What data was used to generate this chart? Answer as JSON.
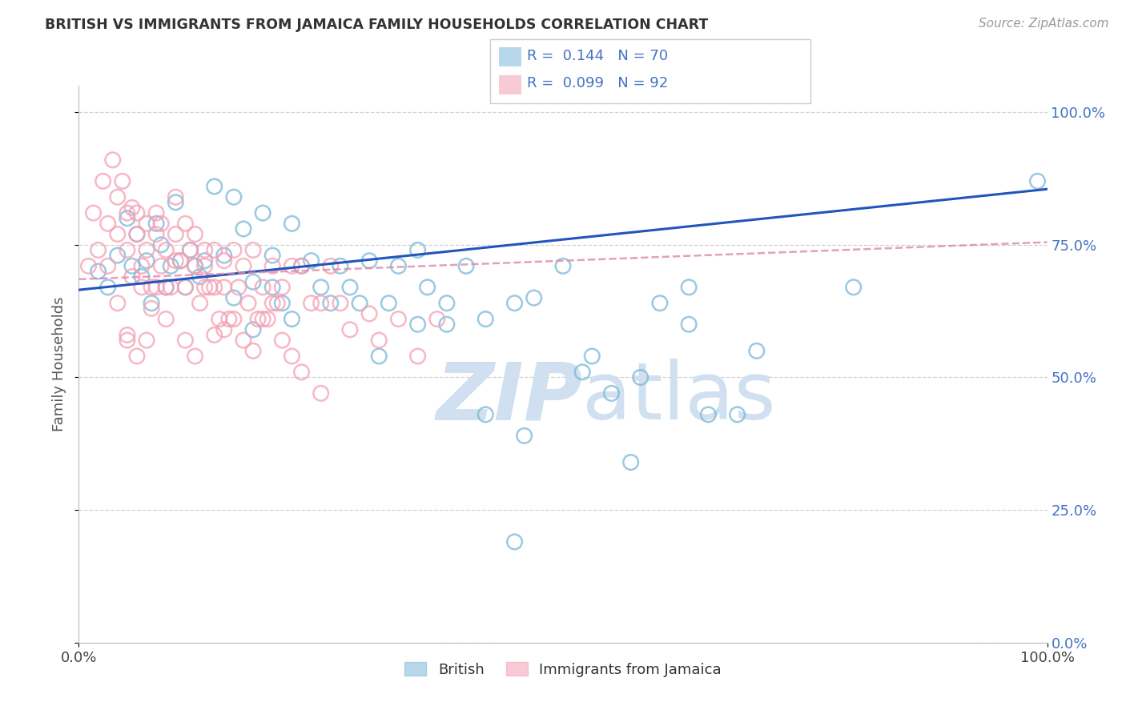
{
  "title": "BRITISH VS IMMIGRANTS FROM JAMAICA FAMILY HOUSEHOLDS CORRELATION CHART",
  "source_text": "Source: ZipAtlas.com",
  "ylabel": "Family Households",
  "series1_name": "British",
  "series2_name": "Immigrants from Jamaica",
  "series1_color": "#7ab8d9",
  "series2_color": "#f4a0b5",
  "series1_R": 0.144,
  "series1_N": 70,
  "series2_R": 0.099,
  "series2_N": 92,
  "xmin": 0.0,
  "xmax": 1.0,
  "ymin": 0.0,
  "ymax": 1.05,
  "ytick_positions": [
    0.0,
    0.25,
    0.5,
    0.75,
    1.0
  ],
  "ytick_labels": [
    "0.0%",
    "25.0%",
    "50.0%",
    "75.0%",
    "100.0%"
  ],
  "xtick_positions": [
    0.0,
    1.0
  ],
  "xtick_labels": [
    "0.0%",
    "100.0%"
  ],
  "background_color": "#ffffff",
  "grid_color": "#cccccc",
  "title_color": "#333333",
  "axis_label_color": "#555555",
  "right_axis_tick_color": "#4472c4",
  "watermark_color": "#d0e0f0",
  "trend1_color": "#2255bb",
  "trend2_color": "#dd88aa",
  "series1_x": [
    0.02,
    0.03,
    0.04,
    0.05,
    0.055,
    0.06,
    0.065,
    0.07,
    0.075,
    0.08,
    0.085,
    0.09,
    0.095,
    0.1,
    0.105,
    0.11,
    0.115,
    0.12,
    0.125,
    0.13,
    0.14,
    0.15,
    0.16,
    0.17,
    0.18,
    0.19,
    0.2,
    0.21,
    0.22,
    0.23,
    0.25,
    0.27,
    0.29,
    0.31,
    0.33,
    0.36,
    0.38,
    0.4,
    0.42,
    0.45,
    0.47,
    0.5,
    0.53,
    0.55,
    0.58,
    0.6,
    0.63,
    0.65,
    0.68,
    0.7,
    0.16,
    0.18,
    0.2,
    0.22,
    0.24,
    0.26,
    0.28,
    0.3,
    0.32,
    0.35,
    0.38,
    0.42,
    0.46,
    0.52,
    0.57,
    0.63,
    0.99,
    0.8,
    0.45,
    0.35
  ],
  "series1_y": [
    0.7,
    0.67,
    0.73,
    0.8,
    0.71,
    0.77,
    0.69,
    0.72,
    0.64,
    0.79,
    0.75,
    0.67,
    0.71,
    0.83,
    0.72,
    0.67,
    0.74,
    0.71,
    0.69,
    0.72,
    0.86,
    0.73,
    0.65,
    0.78,
    0.68,
    0.81,
    0.73,
    0.64,
    0.79,
    0.71,
    0.67,
    0.71,
    0.64,
    0.54,
    0.71,
    0.67,
    0.64,
    0.71,
    0.61,
    0.64,
    0.65,
    0.71,
    0.54,
    0.47,
    0.5,
    0.64,
    0.6,
    0.43,
    0.43,
    0.55,
    0.84,
    0.59,
    0.67,
    0.61,
    0.72,
    0.64,
    0.67,
    0.72,
    0.64,
    0.74,
    0.6,
    0.43,
    0.39,
    0.51,
    0.34,
    0.67,
    0.87,
    0.67,
    0.19,
    0.6
  ],
  "series2_x": [
    0.01,
    0.015,
    0.02,
    0.025,
    0.03,
    0.03,
    0.035,
    0.04,
    0.04,
    0.045,
    0.05,
    0.05,
    0.055,
    0.055,
    0.06,
    0.06,
    0.065,
    0.065,
    0.07,
    0.07,
    0.075,
    0.075,
    0.08,
    0.08,
    0.085,
    0.085,
    0.09,
    0.09,
    0.095,
    0.1,
    0.1,
    0.105,
    0.11,
    0.11,
    0.115,
    0.12,
    0.12,
    0.125,
    0.13,
    0.13,
    0.135,
    0.14,
    0.14,
    0.145,
    0.15,
    0.15,
    0.155,
    0.16,
    0.165,
    0.17,
    0.175,
    0.18,
    0.185,
    0.19,
    0.195,
    0.2,
    0.205,
    0.21,
    0.22,
    0.23,
    0.24,
    0.25,
    0.26,
    0.27,
    0.28,
    0.3,
    0.31,
    0.33,
    0.35,
    0.37,
    0.04,
    0.05,
    0.06,
    0.07,
    0.08,
    0.09,
    0.1,
    0.11,
    0.12,
    0.13,
    0.14,
    0.15,
    0.16,
    0.17,
    0.18,
    0.19,
    0.2,
    0.21,
    0.22,
    0.23,
    0.05,
    0.25
  ],
  "series2_y": [
    0.71,
    0.81,
    0.74,
    0.87,
    0.79,
    0.71,
    0.91,
    0.84,
    0.77,
    0.87,
    0.81,
    0.74,
    0.82,
    0.69,
    0.81,
    0.77,
    0.71,
    0.67,
    0.79,
    0.74,
    0.67,
    0.63,
    0.81,
    0.77,
    0.79,
    0.71,
    0.67,
    0.74,
    0.67,
    0.84,
    0.77,
    0.72,
    0.67,
    0.79,
    0.74,
    0.77,
    0.71,
    0.64,
    0.71,
    0.74,
    0.67,
    0.74,
    0.67,
    0.61,
    0.72,
    0.67,
    0.61,
    0.74,
    0.67,
    0.71,
    0.64,
    0.74,
    0.61,
    0.67,
    0.61,
    0.71,
    0.64,
    0.67,
    0.71,
    0.71,
    0.64,
    0.64,
    0.71,
    0.64,
    0.59,
    0.62,
    0.57,
    0.61,
    0.54,
    0.61,
    0.64,
    0.57,
    0.54,
    0.57,
    0.67,
    0.61,
    0.72,
    0.57,
    0.54,
    0.67,
    0.58,
    0.59,
    0.61,
    0.57,
    0.55,
    0.61,
    0.64,
    0.57,
    0.54,
    0.51,
    0.58,
    0.47
  ]
}
